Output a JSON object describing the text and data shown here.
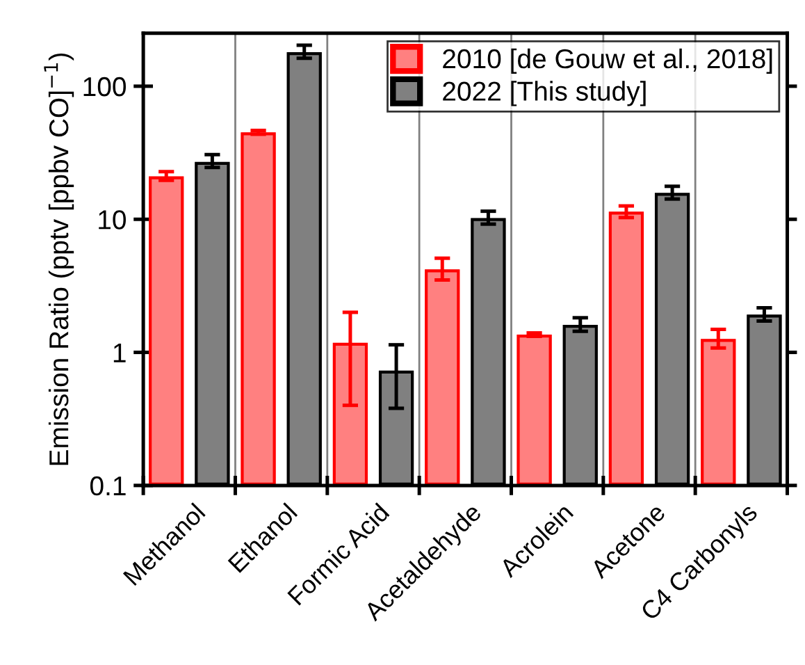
{
  "chart_data": {
    "type": "bar",
    "ylabel": "Emission Ratio (pptv [ppbv CO]$^{−1}$)",
    "categories": [
      "Methanol",
      "Ethanol",
      "Formic Acid",
      "Acetaldehyde",
      "Acrolein",
      "Acetone",
      "C4 Carbonyls"
    ],
    "series": [
      {
        "name": "2010 [de Gouw et al., 2018]",
        "color": "#ff8080",
        "values": [
          21,
          45,
          1.18,
          4.2,
          1.36,
          11.4,
          1.26
        ],
        "errors": [
          [
            19.6,
            22.8
          ],
          [
            43.5,
            46.5
          ],
          [
            0.4,
            2.0
          ],
          [
            3.5,
            5.1
          ],
          [
            1.32,
            1.4
          ],
          [
            10.3,
            12.6
          ],
          [
            1.08,
            1.49
          ]
        ]
      },
      {
        "name": "2022 [This study]",
        "color": "#808080",
        "values": [
          27,
          180,
          0.73,
          10.2,
          1.61,
          15.8,
          1.92
        ],
        "errors": [
          [
            24.5,
            30.6
          ],
          [
            162,
            203
          ],
          [
            0.38,
            1.14
          ],
          [
            9.2,
            11.5
          ],
          [
            1.44,
            1.82
          ],
          [
            14.2,
            17.7
          ],
          [
            1.72,
            2.16
          ]
        ]
      }
    ],
    "log": "y",
    "ylim": [
      0.1,
      250
    ],
    "yticks": [
      0.1,
      1,
      10,
      100
    ],
    "grid": "x",
    "legend": "top right"
  }
}
